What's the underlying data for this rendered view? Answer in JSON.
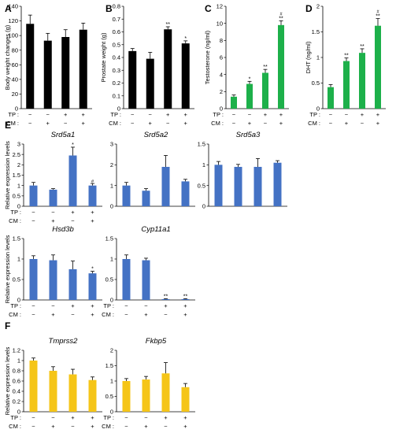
{
  "panel_letters": {
    "A": "A",
    "B": "B",
    "C": "C",
    "D": "D",
    "E": "E",
    "F": "F"
  },
  "factor_labels": {
    "tp": "TP :",
    "cm": "CM :"
  },
  "markers": {
    "minus": "−",
    "plus": "+"
  },
  "group_design": {
    "tp": [
      "−",
      "−",
      "+",
      "+"
    ],
    "cm": [
      "−",
      "+",
      "−",
      "+"
    ]
  },
  "colors": {
    "black": "#000000",
    "green": "#1db04a",
    "blue": "#4472c4",
    "yellow": "#f5c518"
  },
  "chart_data": [
    {
      "id": "A",
      "type": "bar",
      "ylabel": "Body weight changes (g)",
      "title": "",
      "ylim": [
        0,
        140
      ],
      "yticks": [
        0,
        20,
        40,
        60,
        80,
        100,
        120,
        140
      ],
      "values": [
        116,
        93,
        98,
        108
      ],
      "errors": [
        12,
        10,
        10,
        9
      ],
      "sig": [
        "",
        "",
        "",
        ""
      ],
      "color": "black"
    },
    {
      "id": "B",
      "type": "bar",
      "ylabel": "Prostate weight (g)",
      "title": "",
      "ylim": [
        0,
        0.8
      ],
      "yticks": [
        0,
        0.1,
        0.2,
        0.3,
        0.4,
        0.5,
        0.6,
        0.7,
        0.8
      ],
      "values": [
        0.45,
        0.39,
        0.62,
        0.51
      ],
      "errors": [
        0.02,
        0.05,
        0.02,
        0.02
      ],
      "sig": [
        "",
        "",
        "**",
        "*"
      ],
      "color": "black"
    },
    {
      "id": "C",
      "type": "bar",
      "ylabel": "Testosterone (ng/ml)",
      "title": "",
      "ylim": [
        0,
        12
      ],
      "yticks": [
        0,
        2,
        4,
        6,
        8,
        10,
        12
      ],
      "values": [
        1.4,
        2.9,
        4.2,
        9.8
      ],
      "errors": [
        0.2,
        0.3,
        0.4,
        0.5
      ],
      "sig": [
        "",
        "*",
        "**",
        "**"
      ],
      "sig2": [
        "",
        "",
        "",
        "#"
      ],
      "color": "green"
    },
    {
      "id": "D",
      "type": "bar",
      "ylabel": "DHT (ng/ml)",
      "title": "",
      "ylim": [
        0,
        2
      ],
      "yticks": [
        0,
        0.5,
        1,
        1.5,
        2
      ],
      "values": [
        0.42,
        0.93,
        1.09,
        1.62
      ],
      "errors": [
        0.05,
        0.06,
        0.08,
        0.14
      ],
      "sig": [
        "",
        "**",
        "**",
        "**"
      ],
      "sig2": [
        "",
        "",
        "",
        "#"
      ],
      "color": "green"
    },
    {
      "id": "E1",
      "type": "bar",
      "title": "Srd5a1",
      "ylabel": "Relative expression levels",
      "ylim": [
        0,
        3
      ],
      "yticks": [
        0,
        0.5,
        1,
        1.5,
        2,
        2.5,
        3
      ],
      "values": [
        1.0,
        0.8,
        2.45,
        1.0
      ],
      "errors": [
        0.15,
        0.05,
        0.4,
        0.1
      ],
      "sig": [
        "",
        "",
        "*",
        "#"
      ],
      "color": "blue"
    },
    {
      "id": "E2",
      "type": "bar",
      "title": "Srd5a2",
      "ylabel": "",
      "ylim": [
        0,
        3
      ],
      "yticks": [
        0,
        1,
        2,
        3
      ],
      "values": [
        1.0,
        0.75,
        1.9,
        1.2
      ],
      "errors": [
        0.15,
        0.1,
        0.55,
        0.1
      ],
      "sig": [
        "",
        "",
        "",
        ""
      ],
      "color": "blue"
    },
    {
      "id": "E3",
      "type": "bar",
      "title": "Srd5a3",
      "ylabel": "",
      "ylim": [
        0,
        1.5
      ],
      "yticks": [
        0,
        0.5,
        1,
        1.5
      ],
      "values": [
        1.0,
        0.95,
        0.95,
        1.05
      ],
      "errors": [
        0.08,
        0.06,
        0.2,
        0.05
      ],
      "sig": [
        "",
        "",
        "",
        ""
      ],
      "color": "blue"
    },
    {
      "id": "E4",
      "type": "bar",
      "title": "Hsd3b",
      "ylabel": "Relative expression levels",
      "ylim": [
        0,
        1.5
      ],
      "yticks": [
        0,
        0.5,
        1,
        1.5
      ],
      "values": [
        1.0,
        0.97,
        0.75,
        0.65
      ],
      "errors": [
        0.08,
        0.13,
        0.2,
        0.05
      ],
      "sig": [
        "",
        "",
        "",
        "*"
      ],
      "color": "blue"
    },
    {
      "id": "E5",
      "type": "bar",
      "title": "Cyp11a1",
      "ylabel": "",
      "ylim": [
        0,
        1.5
      ],
      "yticks": [
        0,
        0.5,
        1,
        1.5
      ],
      "values": [
        1.0,
        0.97,
        0.02,
        0.02
      ],
      "errors": [
        0.1,
        0.05,
        0.01,
        0.01
      ],
      "sig": [
        "",
        "",
        "**",
        "**"
      ],
      "color": "blue"
    },
    {
      "id": "F1",
      "type": "bar",
      "title": "Tmprss2",
      "ylabel": "Relative expression levels",
      "ylim": [
        0,
        1.2
      ],
      "yticks": [
        0,
        0.2,
        0.4,
        0.6,
        0.8,
        1,
        1.2
      ],
      "values": [
        1.0,
        0.8,
        0.73,
        0.62
      ],
      "errors": [
        0.05,
        0.08,
        0.1,
        0.06
      ],
      "sig": [
        "",
        "",
        "",
        ""
      ],
      "color": "yellow"
    },
    {
      "id": "F2",
      "type": "bar",
      "title": "Fkbp5",
      "ylabel": "",
      "ylim": [
        0,
        2
      ],
      "yticks": [
        0,
        0.5,
        1,
        1.5,
        2
      ],
      "values": [
        1.0,
        1.05,
        1.25,
        0.8
      ],
      "errors": [
        0.08,
        0.1,
        0.35,
        0.12
      ],
      "sig": [
        "",
        "",
        "",
        ""
      ],
      "color": "yellow"
    }
  ]
}
